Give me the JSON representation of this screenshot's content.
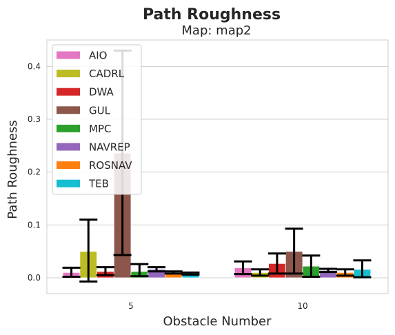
{
  "chart_data": {
    "type": "bar",
    "title": "Path Roughness",
    "subtitle": "Map: map2",
    "xlabel": "Obstacle Number",
    "ylabel": "Path Roughness",
    "categories": [
      "5",
      "10"
    ],
    "ylim": [
      -0.03,
      0.45
    ],
    "yticks": [
      0.0,
      0.1,
      0.2,
      0.3,
      0.4
    ],
    "ytick_labels": [
      "0.0",
      "0.1",
      "0.2",
      "0.3",
      "0.4"
    ],
    "grid": true,
    "legend_position": "top-left",
    "series": [
      {
        "name": "AIO",
        "color": "#e377c2",
        "values": [
          0.01,
          0.019
        ],
        "err_low": [
          0.002,
          0.007
        ],
        "err_high": [
          0.019,
          0.031
        ]
      },
      {
        "name": "CADRL",
        "color": "#bcbd22",
        "values": [
          0.05,
          0.01
        ],
        "err_low": [
          -0.007,
          0.004
        ],
        "err_high": [
          0.11,
          0.016
        ]
      },
      {
        "name": "DWA",
        "color": "#d62728",
        "values": [
          0.012,
          0.027
        ],
        "err_low": [
          0.005,
          0.008
        ],
        "err_high": [
          0.02,
          0.046
        ]
      },
      {
        "name": "GUL",
        "color": "#8c564b",
        "values": [
          0.236,
          0.05
        ],
        "err_low": [
          0.043,
          0.008
        ],
        "err_high": [
          0.43,
          0.093
        ]
      },
      {
        "name": "MPC",
        "color": "#2ca02c",
        "values": [
          0.012,
          0.022
        ],
        "err_low": [
          0.003,
          0.002
        ],
        "err_high": [
          0.026,
          0.042
        ]
      },
      {
        "name": "NAVREP",
        "color": "#9467bd",
        "values": [
          0.016,
          0.014
        ],
        "err_low": [
          0.012,
          0.011
        ],
        "err_high": [
          0.02,
          0.017
        ]
      },
      {
        "name": "ROSNAV",
        "color": "#ff7f0e",
        "values": [
          0.01,
          0.01
        ],
        "err_low": [
          0.008,
          0.004
        ],
        "err_high": [
          0.012,
          0.016
        ]
      },
      {
        "name": "TEB",
        "color": "#17becf",
        "values": [
          0.008,
          0.016
        ],
        "err_low": [
          0.006,
          0.001
        ],
        "err_high": [
          0.01,
          0.033
        ]
      }
    ]
  }
}
